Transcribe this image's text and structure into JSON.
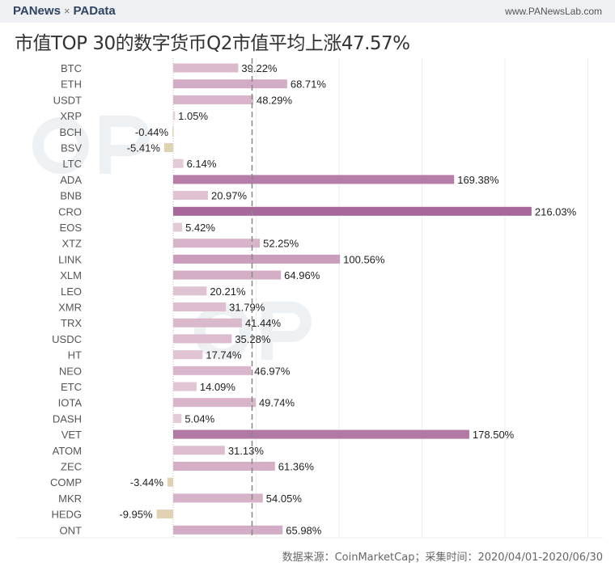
{
  "header": {
    "brand_left": "PANews",
    "brand_sep": "×",
    "brand_right": "PAData",
    "site": "www.PANewsLab.com"
  },
  "watermarks": [
    "PANews",
    "PAData"
  ],
  "footer": {
    "source": "数据来源：CoinMarketCap；采集时间：2020/04/01-2020/06/30"
  },
  "chart_data": {
    "type": "bar",
    "orientation": "horizontal",
    "title": "市值TOP 30的数字货币Q2市值平均上涨47.57%",
    "categories": [
      "BTC",
      "ETH",
      "USDT",
      "XRP",
      "BCH",
      "BSV",
      "LTC",
      "ADA",
      "BNB",
      "CRO",
      "EOS",
      "XTZ",
      "LINK",
      "XLM",
      "LEO",
      "XMR",
      "TRX",
      "USDC",
      "HT",
      "NEO",
      "ETC",
      "IOTA",
      "DASH",
      "VET",
      "ATOM",
      "ZEC",
      "COMP",
      "MKR",
      "HEDG",
      "ONT"
    ],
    "values": [
      39.22,
      68.71,
      48.29,
      1.05,
      -0.44,
      -5.41,
      6.14,
      169.38,
      20.97,
      216.03,
      5.42,
      52.25,
      100.56,
      64.96,
      20.21,
      31.79,
      41.44,
      35.28,
      17.74,
      46.97,
      14.09,
      49.74,
      5.04,
      178.5,
      31.13,
      61.36,
      -3.44,
      54.05,
      -9.95,
      65.98
    ],
    "labels": [
      "39.22%",
      "68.71%",
      "48.29%",
      "1.05%",
      "-0.44%",
      "-5.41%",
      "6.14%",
      "169.38%",
      "20.97%",
      "216.03%",
      "5.42%",
      "52.25%",
      "100.56%",
      "64.96%",
      "20.21%",
      "31.79%",
      "41.44%",
      "35.28%",
      "17.74%",
      "46.97%",
      "14.09%",
      "49.74%",
      "5.04%",
      "178.50%",
      "31.13%",
      "61.36%",
      "-3.44%",
      "54.05%",
      "-9.95%",
      "65.98%"
    ],
    "mean_line": 47.57,
    "xlim": [
      -10,
      255
    ],
    "grid": true,
    "colors": {
      "negative": "#e2d2b4",
      "low": "#e6ccd8",
      "high": "#a8679a"
    }
  }
}
